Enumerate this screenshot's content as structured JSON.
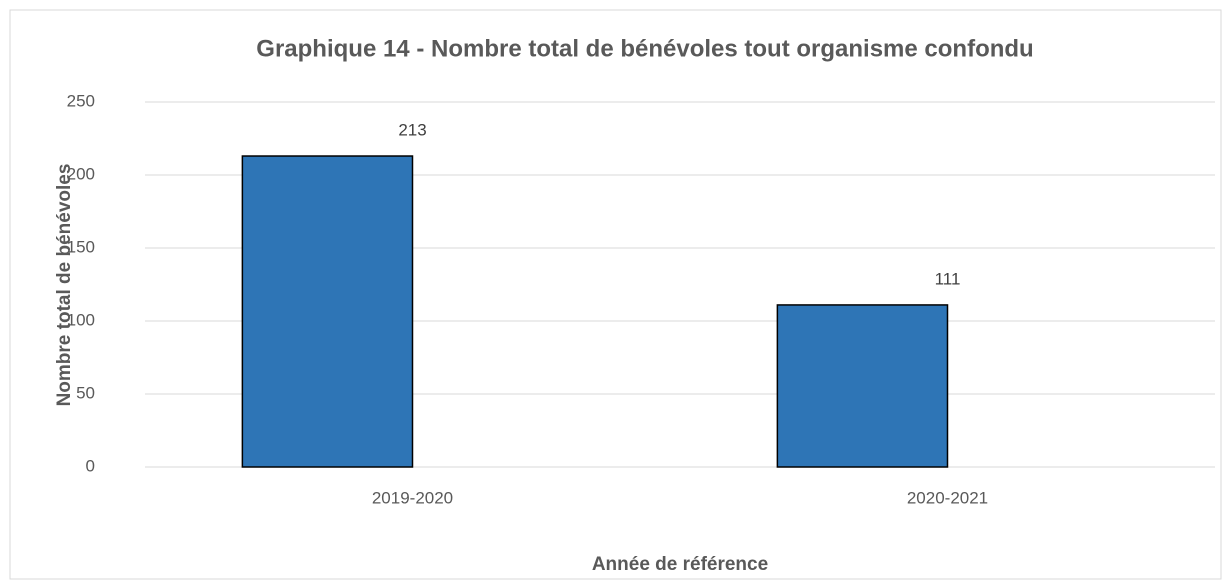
{
  "chart_data": {
    "type": "bar",
    "title": "Graphique 14 - Nombre total de bénévoles tout organisme confondu",
    "x_label": "Année de référence",
    "y_label": "Nombre total de bénévoles",
    "categories": [
      "2019-2020",
      "2020-2021"
    ],
    "values": [
      213,
      111
    ],
    "color": "#2e75b6",
    "ylim": [
      0,
      250
    ],
    "yticks": [
      0,
      50,
      100,
      150,
      200,
      250
    ],
    "grid": true
  }
}
